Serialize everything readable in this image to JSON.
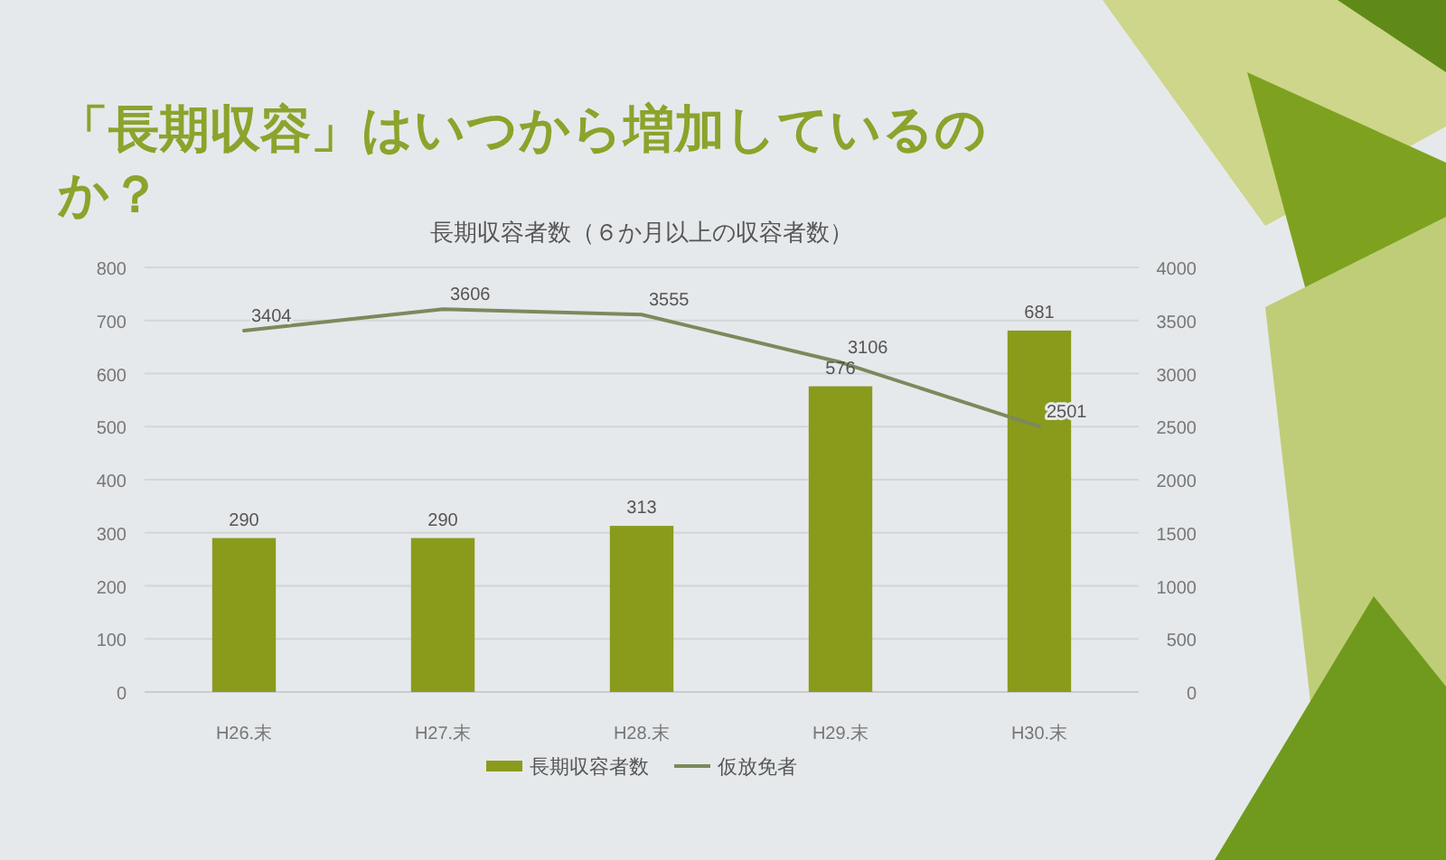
{
  "chart_data": {
    "type": "bar",
    "title": "「長期収容」はいつから増加しているのか？",
    "subtitle": "長期収容者数（６か月以上の収容者数）",
    "categories": [
      "H26.末",
      "H27.末",
      "H28.末",
      "H29.末",
      "H30.末"
    ],
    "series": [
      {
        "name": "長期収容者数",
        "color": "#8a9b1c",
        "values": [
          290,
          290,
          313,
          576,
          681
        ]
      },
      {
        "name": "仮放免者",
        "type": "line",
        "axis": "y2",
        "color": "#7b8a5c",
        "values": [
          3404,
          3606,
          3555,
          3106,
          2501
        ]
      }
    ],
    "ylim": [
      0,
      800
    ],
    "yticks": [
      0,
      100,
      200,
      300,
      400,
      500,
      600,
      700,
      800
    ],
    "y2lim": [
      0,
      4000
    ],
    "y2ticks": [
      0,
      500,
      1000,
      1500,
      2000,
      2500,
      3000,
      3500,
      4000
    ],
    "grid": "y",
    "legend": "bottom",
    "data_labels": true
  }
}
